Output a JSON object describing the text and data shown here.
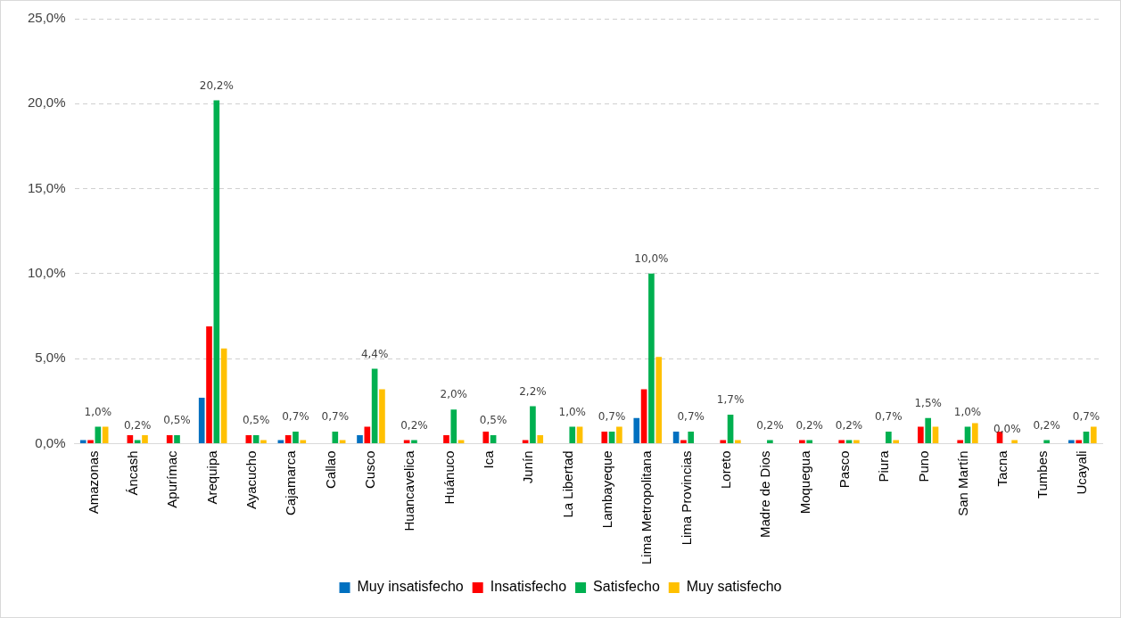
{
  "chart_data": {
    "type": "bar",
    "categories": [
      "Amazonas",
      "Áncash",
      "Apurímac",
      "Arequipa",
      "Ayacucho",
      "Cajamarca",
      "Callao",
      "Cusco",
      "Huancavelica",
      "Huánuco",
      "Ica",
      "Junín",
      "La Libertad",
      "Lambayeque",
      "Lima Metropolitana",
      "Lima Provincias",
      "Loreto",
      "Madre de Dios",
      "Moquegua",
      "Pasco",
      "Piura",
      "Puno",
      "San Martín",
      "Tacna",
      "Tumbes",
      "Ucayali"
    ],
    "series": [
      {
        "name": "Muy insatisfecho",
        "color": "#0070c0",
        "values": [
          0.2,
          0,
          0,
          2.7,
          0,
          0.2,
          0,
          0.5,
          0,
          0,
          0,
          0,
          0,
          0,
          1.5,
          0.7,
          0,
          0,
          0,
          0,
          0,
          0,
          0,
          0,
          0,
          0.2
        ]
      },
      {
        "name": "Insatisfecho",
        "color": "#ff0000",
        "values": [
          0.2,
          0.5,
          0.5,
          6.9,
          0.5,
          0.5,
          0,
          1.0,
          0.2,
          0.5,
          0.7,
          0.2,
          0,
          0.7,
          3.2,
          0.2,
          0.2,
          0,
          0.2,
          0.2,
          0,
          1.0,
          0.2,
          0.7,
          0,
          0.2
        ]
      },
      {
        "name": "Satisfecho",
        "color": "#00b050",
        "values": [
          1.0,
          0.2,
          0.5,
          20.2,
          0.5,
          0.7,
          0.7,
          4.4,
          0.2,
          2.0,
          0.5,
          2.2,
          1.0,
          0.7,
          10.0,
          0.7,
          1.7,
          0.2,
          0.2,
          0.2,
          0.7,
          1.5,
          1.0,
          0.0,
          0.2,
          0.7
        ],
        "value_labels": [
          "1,0%",
          "0,2%",
          "0,5%",
          "20,2%",
          "0,5%",
          "0,7%",
          "0,7%",
          "4,4%",
          "0,2%",
          "2,0%",
          "0,5%",
          "2,2%",
          "1,0%",
          "0,7%",
          "10,0%",
          "0,7%",
          "1,7%",
          "0,2%",
          "0,2%",
          "0,2%",
          "0,7%",
          "1,5%",
          "1,0%",
          "0,0%",
          "0,2%",
          "0,7%"
        ]
      },
      {
        "name": "Muy satisfecho",
        "color": "#ffc000",
        "values": [
          1.0,
          0.5,
          0,
          5.6,
          0.2,
          0.2,
          0.2,
          3.2,
          0,
          0.2,
          0,
          0.5,
          1.0,
          1.0,
          5.1,
          0,
          0.2,
          0,
          0,
          0.2,
          0.2,
          1.0,
          1.2,
          0.2,
          0,
          1.0
        ]
      }
    ],
    "ylim": [
      0,
      25
    ],
    "yticks": [
      {
        "value": 0,
        "label": "0,0%"
      },
      {
        "value": 5,
        "label": "5,0%"
      },
      {
        "value": 10,
        "label": "10,0%"
      },
      {
        "value": 15,
        "label": "15,0%"
      },
      {
        "value": 20,
        "label": "20,0%"
      },
      {
        "value": 25,
        "label": "25,0%"
      }
    ],
    "grid": "y",
    "legend": "bottom"
  }
}
